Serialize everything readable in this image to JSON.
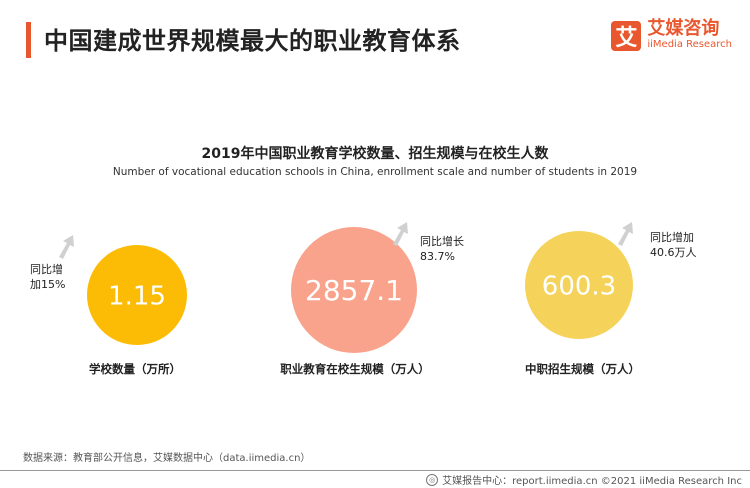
{
  "header": {
    "title": "中国建成世界规模最大的职业教育体系",
    "logo_mark": "艾",
    "logo_cn": "艾媒咨询",
    "logo_en": "iiMedia Research"
  },
  "chart_data": {
    "type": "bubble",
    "title": "2019年中国职业教育学校数量、招生规模与在校生人数",
    "subtitle": "Number of vocational education schools in China, enrollment scale and number of students in 2019",
    "items": [
      {
        "label": "学校数量（万所）",
        "value": 1.15,
        "value_text": "1.15",
        "growth_line1": "同比增",
        "growth_line2": "加15%",
        "color": "#fcbc05"
      },
      {
        "label": "职业教育在校生规模（万人）",
        "value": 2857.1,
        "value_text": "2857.1",
        "growth_line1": "同比增长",
        "growth_line2": "83.7%",
        "color": "#f9a38c"
      },
      {
        "label": "中职招生规模（万人）",
        "value": 600.3,
        "value_text": "600.3",
        "growth_line1": "同比增加",
        "growth_line2": "40.6万人",
        "color": "#f5d259"
      }
    ]
  },
  "footer": {
    "source": "数据来源：教育部公开信息，艾媒数据中心（data.iimedia.cn）",
    "credit": "艾媒报告中心：report.iimedia.cn  ©2021  iiMedia Research  Inc"
  },
  "colors": {
    "accent": "#e9572f",
    "arrow": "#d0d0d0"
  }
}
